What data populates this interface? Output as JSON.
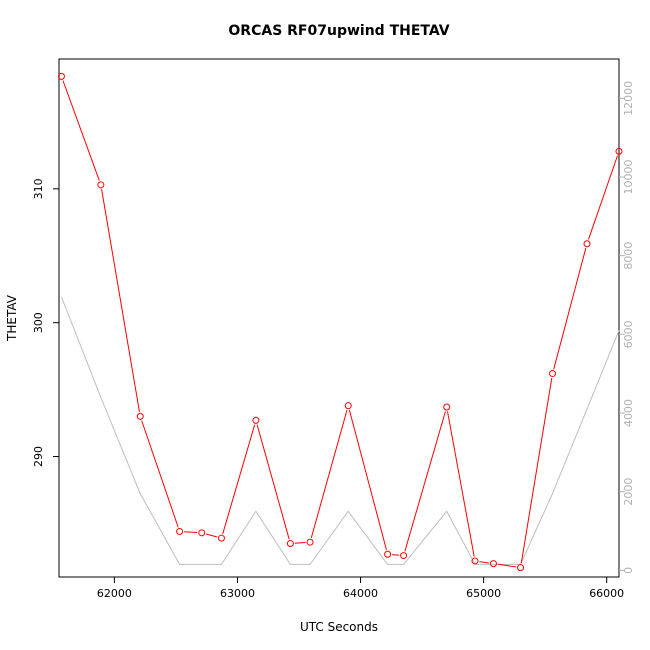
{
  "chart_data": {
    "type": "line",
    "title": "ORCAS RF07upwind THETAV",
    "xlabel": "UTC Seconds",
    "ylabel": "THETAV",
    "xlim": [
      61550,
      66100
    ],
    "ylim": [
      281,
      319.7
    ],
    "y2lim": [
      -170,
      13000
    ],
    "x_ticks": [
      62000,
      63000,
      64000,
      65000,
      66000
    ],
    "y_ticks": [
      290,
      300,
      310
    ],
    "y2_ticks": [
      0,
      2000,
      4000,
      6000,
      8000,
      10000,
      12000
    ],
    "grid": false,
    "colors": {
      "series_thetav": "#ff0000",
      "series_secondary": "#bebebe",
      "axis": "#000000",
      "right_axis": "#b0b0b0"
    },
    "series": [
      {
        "axis": "left",
        "style": "line+points",
        "x": [
          61570,
          61890,
          62210,
          62530,
          62710,
          62870,
          63150,
          63430,
          63590,
          63900,
          64220,
          64350,
          64700,
          64930,
          65080,
          65300,
          65560,
          65840,
          66100
        ],
        "y": [
          318.4,
          310.3,
          293.0,
          284.4,
          284.3,
          283.9,
          292.7,
          283.5,
          283.6,
          293.8,
          282.7,
          282.6,
          293.7,
          282.2,
          282.0,
          281.7,
          296.2,
          305.9,
          312.8
        ]
      },
      {
        "axis": "right",
        "style": "line",
        "x": [
          61570,
          61890,
          62210,
          62530,
          62710,
          62870,
          63150,
          63430,
          63590,
          63900,
          64220,
          64350,
          64700,
          64930,
          65080,
          65300,
          65560,
          65840,
          66100
        ],
        "y": [
          6950,
          4400,
          1950,
          150,
          150,
          150,
          1500,
          150,
          150,
          1500,
          150,
          150,
          1500,
          150,
          150,
          150,
          1950,
          4100,
          6100
        ]
      }
    ]
  }
}
